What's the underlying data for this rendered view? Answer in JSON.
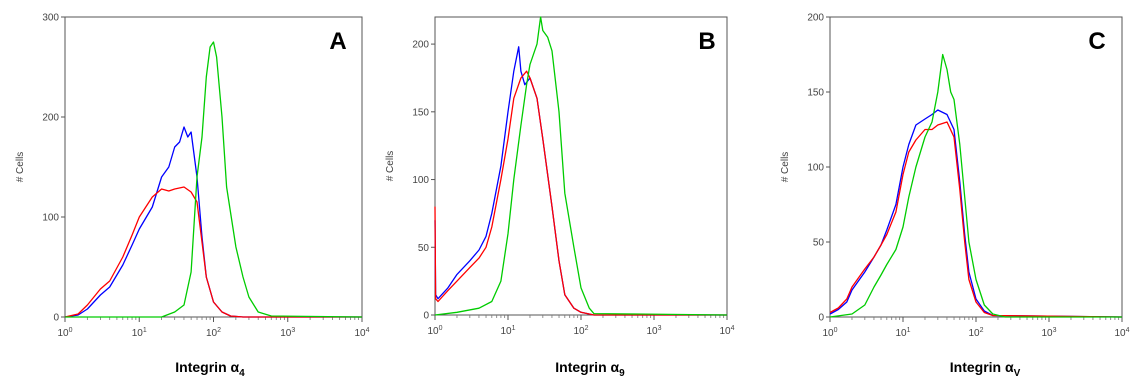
{
  "chart_data": [
    {
      "type": "line",
      "panel_label": "A",
      "xlabel": {
        "text": "Integrin α",
        "sub": "4"
      },
      "ylabel": "# Cells",
      "x_scale": "log",
      "xlim": [
        1,
        10000
      ],
      "ylim": [
        0,
        300
      ],
      "yticks": [
        "0",
        "100",
        "200",
        "300"
      ],
      "xticks": [
        {
          "base": "10",
          "exp": "0"
        },
        {
          "base": "10",
          "exp": "1"
        },
        {
          "base": "10",
          "exp": "2"
        },
        {
          "base": "10",
          "exp": "3"
        },
        {
          "base": "10",
          "exp": "4"
        }
      ],
      "series": [
        {
          "color": "#0000ff",
          "x": [
            1,
            1.5,
            2,
            3,
            4,
            6,
            8,
            10,
            15,
            20,
            25,
            30,
            35,
            40,
            45,
            50,
            60,
            70,
            80,
            100,
            130,
            170,
            250,
            10000
          ],
          "y": [
            0,
            2,
            8,
            22,
            30,
            52,
            72,
            88,
            110,
            140,
            150,
            170,
            175,
            190,
            180,
            185,
            140,
            80,
            40,
            15,
            5,
            1,
            0,
            0
          ]
        },
        {
          "color": "#ff0000",
          "x": [
            1,
            1.5,
            2,
            3,
            4,
            6,
            8,
            10,
            15,
            20,
            25,
            30,
            40,
            50,
            60,
            70,
            80,
            100,
            130,
            170,
            250,
            10000
          ],
          "y": [
            0,
            3,
            12,
            28,
            36,
            60,
            82,
            100,
            120,
            128,
            126,
            128,
            130,
            125,
            115,
            75,
            40,
            15,
            5,
            1,
            0,
            0
          ]
        },
        {
          "color": "#00cc00",
          "x": [
            1,
            20,
            30,
            40,
            50,
            60,
            70,
            80,
            90,
            100,
            110,
            130,
            150,
            200,
            250,
            300,
            400,
            600,
            10000
          ],
          "y": [
            0,
            0,
            5,
            12,
            45,
            140,
            180,
            240,
            270,
            275,
            260,
            200,
            130,
            70,
            40,
            20,
            5,
            1,
            0
          ]
        }
      ]
    },
    {
      "type": "line",
      "panel_label": "B",
      "xlabel": {
        "text": "Integrin α",
        "sub": "9"
      },
      "ylabel": "# Cells",
      "x_scale": "log",
      "xlim": [
        1,
        10000
      ],
      "ylim": [
        0,
        220
      ],
      "yticks": [
        "0",
        "50",
        "100",
        "150",
        "200"
      ],
      "xticks": [
        {
          "base": "10",
          "exp": "0"
        },
        {
          "base": "10",
          "exp": "1"
        },
        {
          "base": "10",
          "exp": "2"
        },
        {
          "base": "10",
          "exp": "3"
        },
        {
          "base": "10",
          "exp": "4"
        }
      ],
      "series": [
        {
          "color": "#0000ff",
          "x": [
            1,
            1.02,
            1.1,
            1.5,
            2,
            3,
            4,
            5,
            6,
            8,
            10,
            12,
            14,
            15,
            17,
            20,
            25,
            30,
            40,
            50,
            60,
            80,
            100,
            150,
            10000
          ],
          "y": [
            70,
            15,
            12,
            20,
            30,
            40,
            48,
            58,
            75,
            110,
            150,
            180,
            198,
            180,
            170,
            175,
            160,
            130,
            80,
            40,
            15,
            5,
            2,
            0,
            0
          ]
        },
        {
          "color": "#ff0000",
          "x": [
            1,
            1.02,
            1.1,
            1.5,
            2,
            3,
            4,
            5,
            6,
            8,
            10,
            12,
            15,
            18,
            20,
            25,
            30,
            40,
            50,
            60,
            80,
            100,
            150,
            10000
          ],
          "y": [
            80,
            12,
            10,
            18,
            25,
            35,
            42,
            50,
            65,
            100,
            130,
            160,
            175,
            180,
            175,
            160,
            130,
            80,
            40,
            15,
            5,
            2,
            0,
            0
          ]
        },
        {
          "color": "#00cc00",
          "x": [
            1,
            2,
            4,
            6,
            8,
            10,
            12,
            15,
            18,
            20,
            25,
            28,
            30,
            35,
            40,
            50,
            60,
            80,
            100,
            130,
            150,
            10000
          ],
          "y": [
            0,
            2,
            5,
            10,
            25,
            60,
            100,
            140,
            170,
            185,
            200,
            220,
            210,
            205,
            195,
            150,
            90,
            50,
            20,
            5,
            1,
            0
          ]
        }
      ]
    },
    {
      "type": "line",
      "panel_label": "C",
      "xlabel": {
        "text": "Integrin α",
        "sub": "V"
      },
      "ylabel": "# Cells",
      "x_scale": "log",
      "xlim": [
        1,
        10000
      ],
      "ylim": [
        0,
        200
      ],
      "yticks": [
        "0",
        "50",
        "100",
        "150",
        "200"
      ],
      "xticks": [
        {
          "base": "10",
          "exp": "0"
        },
        {
          "base": "10",
          "exp": "1"
        },
        {
          "base": "10",
          "exp": "2"
        },
        {
          "base": "10",
          "exp": "3"
        },
        {
          "base": "10",
          "exp": "4"
        }
      ],
      "series": [
        {
          "color": "#0000ff",
          "x": [
            1,
            1.3,
            1.7,
            2,
            3,
            4,
            5,
            6,
            8,
            10,
            12,
            15,
            20,
            25,
            30,
            40,
            50,
            60,
            70,
            80,
            100,
            130,
            170,
            10000
          ],
          "y": [
            2,
            5,
            10,
            18,
            30,
            40,
            48,
            58,
            75,
            100,
            115,
            128,
            132,
            135,
            138,
            135,
            125,
            90,
            55,
            30,
            12,
            4,
            1,
            0
          ]
        },
        {
          "color": "#ff0000",
          "x": [
            1,
            1.3,
            1.7,
            2,
            3,
            4,
            5,
            6,
            8,
            10,
            12,
            15,
            20,
            25,
            30,
            40,
            50,
            60,
            70,
            80,
            100,
            130,
            170,
            10000
          ],
          "y": [
            3,
            6,
            12,
            20,
            32,
            40,
            48,
            55,
            70,
            95,
            110,
            118,
            125,
            125,
            128,
            130,
            120,
            85,
            50,
            25,
            10,
            3,
            1,
            0
          ]
        },
        {
          "color": "#00cc00",
          "x": [
            1,
            2,
            3,
            4,
            5,
            6,
            8,
            10,
            12,
            15,
            20,
            25,
            30,
            35,
            40,
            45,
            50,
            60,
            70,
            80,
            100,
            130,
            170,
            250,
            10000
          ],
          "y": [
            0,
            2,
            8,
            20,
            28,
            35,
            45,
            60,
            80,
            100,
            120,
            130,
            150,
            175,
            165,
            150,
            145,
            115,
            80,
            50,
            25,
            8,
            2,
            0,
            0
          ]
        }
      ]
    }
  ]
}
